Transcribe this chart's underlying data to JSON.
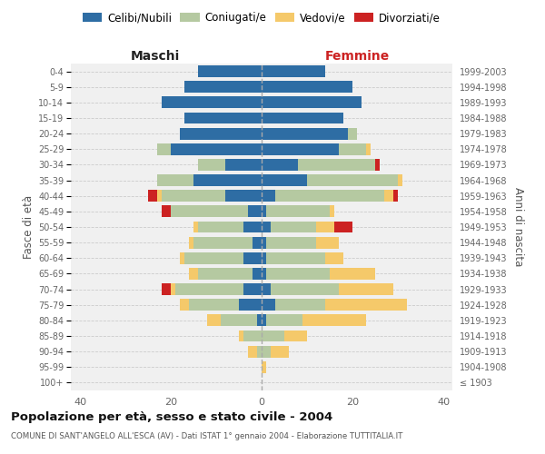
{
  "age_groups": [
    "100+",
    "95-99",
    "90-94",
    "85-89",
    "80-84",
    "75-79",
    "70-74",
    "65-69",
    "60-64",
    "55-59",
    "50-54",
    "45-49",
    "40-44",
    "35-39",
    "30-34",
    "25-29",
    "20-24",
    "15-19",
    "10-14",
    "5-9",
    "0-4"
  ],
  "birth_years": [
    "≤ 1903",
    "1904-1908",
    "1909-1913",
    "1914-1918",
    "1919-1923",
    "1924-1928",
    "1929-1933",
    "1934-1938",
    "1939-1943",
    "1944-1948",
    "1949-1953",
    "1954-1958",
    "1959-1963",
    "1964-1968",
    "1969-1973",
    "1974-1978",
    "1979-1983",
    "1984-1988",
    "1989-1993",
    "1994-1998",
    "1999-2003"
  ],
  "colors": {
    "celibe": "#2e6da4",
    "coniugato": "#b5c9a1",
    "vedovo": "#f5c96a",
    "divorziato": "#cc2222"
  },
  "maschi": {
    "celibe": [
      0,
      0,
      0,
      0,
      1,
      5,
      4,
      2,
      4,
      2,
      4,
      3,
      8,
      15,
      8,
      20,
      18,
      17,
      22,
      17,
      14
    ],
    "coniugato": [
      0,
      0,
      1,
      4,
      8,
      11,
      15,
      12,
      13,
      13,
      10,
      17,
      14,
      8,
      6,
      3,
      0,
      0,
      0,
      0,
      0
    ],
    "vedovo": [
      0,
      0,
      2,
      1,
      3,
      2,
      1,
      2,
      1,
      1,
      1,
      0,
      1,
      0,
      0,
      0,
      0,
      0,
      0,
      0,
      0
    ],
    "divorziato": [
      0,
      0,
      0,
      0,
      0,
      0,
      2,
      0,
      0,
      0,
      0,
      2,
      2,
      0,
      0,
      0,
      0,
      0,
      0,
      0,
      0
    ]
  },
  "femmine": {
    "nubile": [
      0,
      0,
      0,
      0,
      1,
      3,
      2,
      1,
      1,
      1,
      2,
      1,
      3,
      10,
      8,
      17,
      19,
      18,
      22,
      20,
      14
    ],
    "coniugata": [
      0,
      0,
      2,
      5,
      8,
      11,
      15,
      14,
      13,
      11,
      10,
      14,
      24,
      20,
      17,
      6,
      2,
      0,
      0,
      0,
      0
    ],
    "vedova": [
      0,
      1,
      4,
      5,
      14,
      18,
      12,
      10,
      4,
      5,
      4,
      1,
      2,
      1,
      0,
      1,
      0,
      0,
      0,
      0,
      0
    ],
    "divorziata": [
      0,
      0,
      0,
      0,
      0,
      0,
      0,
      0,
      0,
      0,
      4,
      0,
      1,
      0,
      1,
      0,
      0,
      0,
      0,
      0,
      0
    ]
  },
  "xlim": 42,
  "title": "Popolazione per età, sesso e stato civile - 2004",
  "subtitle": "COMUNE DI SANT'ANGELO ALL'ESCA (AV) - Dati ISTAT 1° gennaio 2004 - Elaborazione TUTTITALIA.IT",
  "ylabel_left": "Fasce di età",
  "ylabel_right": "Anni di nascita",
  "xlabel_maschi": "Maschi",
  "xlabel_femmine": "Femmine",
  "legend_labels": [
    "Celibi/Nubili",
    "Coniugati/e",
    "Vedovi/e",
    "Divorziati/e"
  ],
  "bg_color": "#ffffff",
  "plot_bg": "#f0f0f0",
  "bar_height": 0.75
}
